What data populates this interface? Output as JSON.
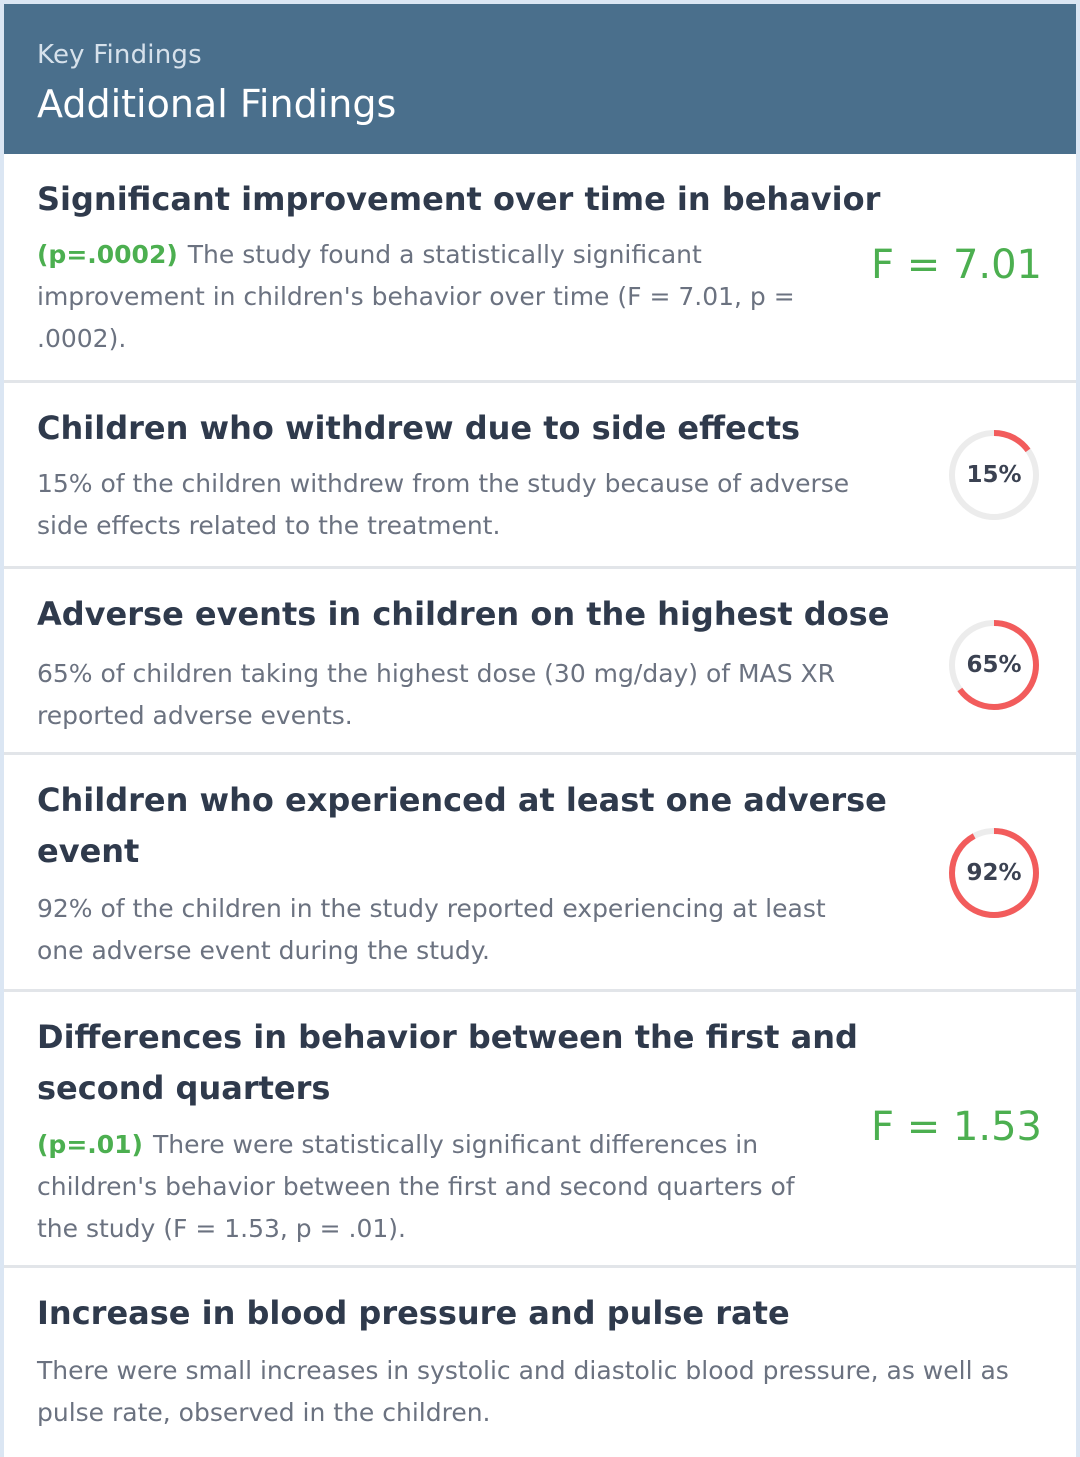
{
  "header": {
    "kicker": "Key Findings",
    "title": "Additional Findings"
  },
  "findings": [
    {
      "title": "Significant improvement over time in behavior",
      "p_value": "(p=.0002)",
      "description": "The study found a statistically significant improvement in children's behavior over time (F = 7.01, p = .0002).",
      "stat": "F = 7.01"
    },
    {
      "title": "Children who withdrew due to side effects",
      "description": "15% of the children withdrew from the study because of adverse side effects related to the treatment.",
      "percent_label": "15%",
      "percent": 15
    },
    {
      "title": "Adverse events in children on the highest dose",
      "description": "65% of children taking the highest dose (30 mg/day) of MAS XR reported adverse events.",
      "percent_label": "65%",
      "percent": 65
    },
    {
      "title_line1": "Children who experienced at least one adverse",
      "title_line2": "event",
      "description": "92% of the children in the study reported experiencing at least one adverse event during the study.",
      "percent_label": "92%",
      "percent": 92
    },
    {
      "title_line1": "Differences in behavior between the first and",
      "title_line2": "second quarters",
      "p_value": "(p=.01)",
      "description": "There were statistically significant differences in children's behavior between the first and second quarters of the study (F = 1.53, p = .01).",
      "stat": "F = 1.53"
    },
    {
      "title": "Increase in blood pressure and pulse rate",
      "description": "There were small increases in systolic and diastolic blood pressure, as well as pulse rate, observed in the children."
    }
  ],
  "colors": {
    "header_bg": "#4a6f8c",
    "stat_green": "#4caf50",
    "ring_red": "#f25c5c",
    "ring_track": "#ececec"
  }
}
